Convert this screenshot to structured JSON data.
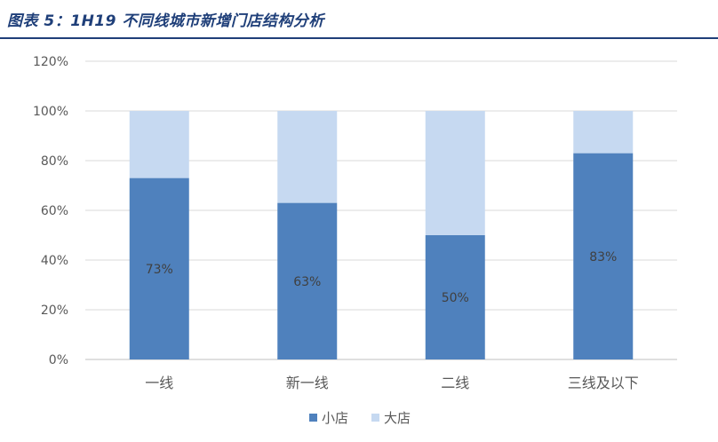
{
  "figure": {
    "title": "图表 5：1H19 不同线城市新增门店结构分析"
  },
  "chart_data": {
    "type": "bar",
    "stacked": true,
    "categories": [
      "一线",
      "新一线",
      "二线",
      "三线及以下"
    ],
    "series": [
      {
        "name": "小店",
        "values": [
          73,
          63,
          50,
          83
        ],
        "labels": [
          "73%",
          "63%",
          "50%",
          "83%"
        ],
        "color": "#4f81bd"
      },
      {
        "name": "大店",
        "values": [
          27,
          37,
          50,
          17
        ],
        "color": "#c6d9f1"
      }
    ],
    "ylim": [
      0,
      120
    ],
    "yticks": [
      0,
      20,
      40,
      60,
      80,
      100,
      120
    ],
    "ytick_labels": [
      "0%",
      "20%",
      "40%",
      "60%",
      "80%",
      "100%",
      "120%"
    ],
    "grid": true,
    "legend_position": "bottom",
    "xlabel": "",
    "ylabel": ""
  }
}
